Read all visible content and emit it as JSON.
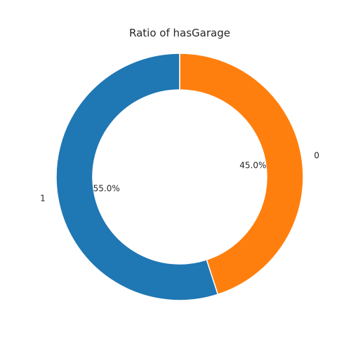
{
  "chart_data": {
    "type": "pie",
    "variant": "donut",
    "title": "Ratio of hasGarage",
    "labels": [
      "1",
      "0"
    ],
    "values": [
      55.0,
      45.0
    ],
    "percent_labels": [
      "55.0%",
      "45.0%"
    ],
    "colors": [
      "#1f77b4",
      "#ff7f0e"
    ],
    "start_angle_deg": 90,
    "direction": "counterclockwise"
  }
}
